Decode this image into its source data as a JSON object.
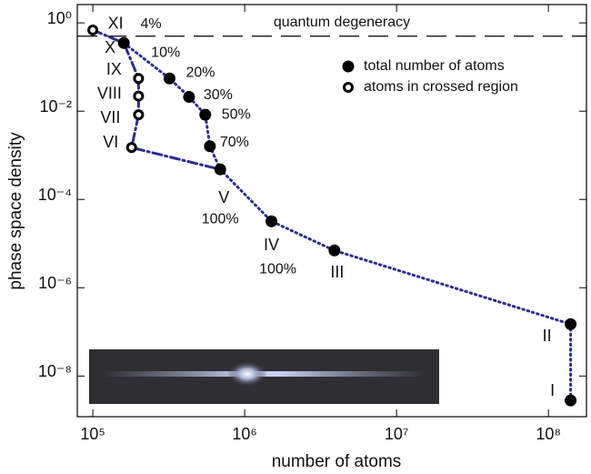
{
  "chart_data": {
    "type": "line",
    "xlabel": "number of atoms",
    "ylabel": "phase space density",
    "log_x": true,
    "log_y": true,
    "xlim": [
      79000,
      178000000
    ],
    "ylim": [
      1.2e-09,
      2.6
    ],
    "xticks": [
      {
        "value": 100000,
        "label": "10⁵"
      },
      {
        "value": 1000000,
        "label": "10⁶"
      },
      {
        "value": 10000000,
        "label": "10⁷"
      },
      {
        "value": 100000000,
        "label": "10⁸"
      }
    ],
    "yticks": [
      {
        "value": 1,
        "label": "10⁰"
      },
      {
        "value": 0.01,
        "label": "10⁻²"
      },
      {
        "value": 0.0001,
        "label": "10⁻⁴"
      },
      {
        "value": 1e-06,
        "label": "10⁻⁶"
      },
      {
        "value": 1e-08,
        "label": "10⁻⁸"
      }
    ],
    "reference_line": {
      "value": 0.5,
      "label": "quantum degeneracy"
    },
    "legend_position": "upper right",
    "series": [
      {
        "name": "total number of atoms",
        "color": "#2b2e8c",
        "marker": "filled",
        "line_style": "dotted",
        "x": [
          140000000,
          140000000,
          3900000,
          1500000,
          690000,
          590000,
          550000,
          430000,
          320000,
          160000
        ],
        "values": [
          2.8e-09,
          1.5e-07,
          7e-06,
          3.2e-05,
          0.00048,
          0.0016,
          0.0083,
          0.021,
          0.055,
          0.35
        ],
        "point_labels": [
          "I",
          "II",
          "III",
          "IV",
          "V",
          null,
          null,
          null,
          null,
          null
        ],
        "percent_labels": [
          null,
          null,
          null,
          "100%",
          "100%",
          "70%",
          "50%",
          "30%",
          "20%",
          "10%"
        ]
      },
      {
        "name": "atoms in crossed region",
        "color": "#2b2e8c",
        "marker": "open",
        "line_style": "dashdot",
        "x": [
          100000,
          160000,
          200000,
          200000,
          200000,
          180000,
          690000
        ],
        "values": [
          0.69,
          0.35,
          0.055,
          0.022,
          0.0083,
          0.0015,
          0.00048
        ],
        "point_labels": [
          "XI",
          "X",
          "IX",
          "VIII",
          "VII",
          "VI",
          null
        ],
        "percent_labels": [
          "4%",
          null,
          null,
          null,
          null,
          null,
          null
        ]
      }
    ]
  }
}
